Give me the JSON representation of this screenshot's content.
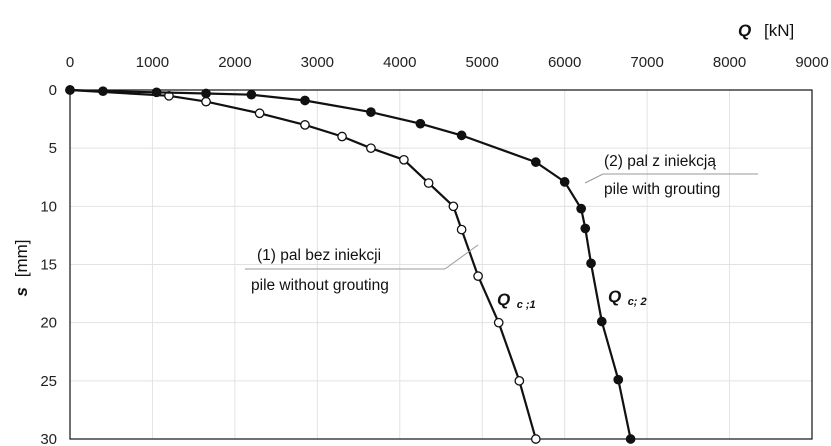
{
  "chart_data": {
    "type": "line",
    "x_axis": {
      "label_symbol": "Q",
      "label_unit": "[kN]",
      "range": [
        0,
        9000
      ],
      "ticks": [
        "0",
        "1000",
        "2000",
        "3000",
        "4000",
        "5000",
        "6000",
        "7000",
        "8000",
        "9000"
      ],
      "position": "top"
    },
    "y_axis": {
      "label_symbol": "s",
      "label_unit": "[mm]",
      "range": [
        0,
        30
      ],
      "inverted": true,
      "ticks": [
        "0",
        "5",
        "10",
        "15",
        "20",
        "25",
        "30"
      ]
    },
    "grid": true,
    "series": [
      {
        "marker": "open-circle",
        "x": [
          0,
          1200,
          1650,
          2300,
          2850,
          3300,
          3650,
          4050,
          4350,
          4650,
          4750,
          4950,
          5200,
          5450,
          5650
        ],
        "y": [
          0,
          0.5,
          1,
          2,
          3,
          4,
          5,
          6,
          8,
          10,
          12,
          16,
          20,
          25,
          30
        ]
      },
      {
        "marker": "filled-circle",
        "x": [
          0,
          400,
          1050,
          1650,
          2200,
          2850,
          3650,
          4250,
          4750,
          5650,
          6000,
          6200,
          6250,
          6320,
          6450,
          6650,
          6800
        ],
        "y": [
          0,
          0.1,
          0.2,
          0.3,
          0.4,
          0.9,
          1.9,
          2.9,
          3.9,
          6.2,
          7.9,
          10.2,
          11.9,
          14.9,
          19.9,
          24.9,
          30
        ]
      }
    ],
    "annotations": [
      {
        "line1": "(1) pal bez iniekcji",
        "line2": "pile without grouting"
      },
      {
        "line1": "(2) pal z iniekcją",
        "line2": "pile with grouting"
      }
    ],
    "curve_labels": [
      {
        "main": "Q",
        "sub": "c ;1"
      },
      {
        "main": "Q",
        "sub": "c; 2"
      }
    ]
  }
}
